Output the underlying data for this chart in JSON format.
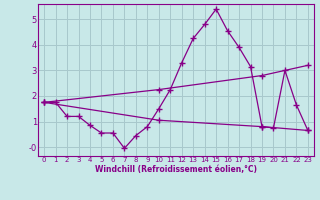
{
  "xlabel": "Windchill (Refroidissement éolien,°C)",
  "bg_color": "#c8e8e8",
  "grid_color": "#a8c8cc",
  "line_color": "#880088",
  "xlim": [
    -0.5,
    23.5
  ],
  "ylim": [
    -0.35,
    5.6
  ],
  "yticks": [
    0,
    1,
    2,
    3,
    4,
    5
  ],
  "ytick_labels": [
    "-0",
    "1",
    "2",
    "3",
    "4",
    "5"
  ],
  "xticks": [
    0,
    1,
    2,
    3,
    4,
    5,
    6,
    7,
    8,
    9,
    10,
    11,
    12,
    13,
    14,
    15,
    16,
    17,
    18,
    19,
    20,
    21,
    22,
    23
  ],
  "series1_x": [
    0,
    1,
    2,
    3,
    4,
    5,
    6,
    7,
    8,
    9,
    10,
    11,
    12,
    13,
    14,
    15,
    16,
    17,
    18,
    19,
    20,
    21,
    22,
    23
  ],
  "series1_y": [
    1.75,
    1.75,
    1.2,
    1.2,
    0.85,
    0.55,
    0.55,
    -0.05,
    0.45,
    0.8,
    1.5,
    2.25,
    3.3,
    4.25,
    4.8,
    5.4,
    4.55,
    3.9,
    3.15,
    0.8,
    0.75,
    3.0,
    1.65,
    0.65
  ],
  "series2_x": [
    0,
    10,
    19,
    23
  ],
  "series2_y": [
    1.75,
    1.05,
    0.8,
    0.65
  ],
  "series3_x": [
    0,
    10,
    19,
    23
  ],
  "series3_y": [
    1.75,
    2.25,
    2.8,
    3.2
  ],
  "marker": "+",
  "linewidth": 0.9,
  "markersize": 4,
  "markeredgewidth": 1.0
}
